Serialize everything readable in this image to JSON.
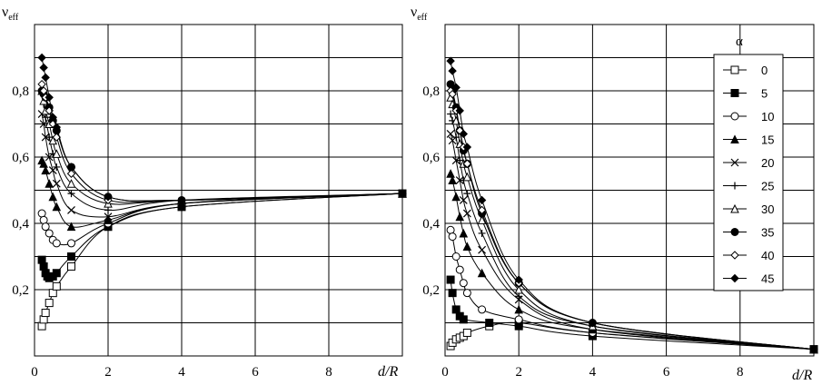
{
  "chart_data": [
    {
      "type": "line",
      "ylabel": "ν",
      "ylabel_sub": "eff",
      "xlabel": "d/R",
      "xlim": [
        0,
        10
      ],
      "ylim": [
        0,
        1
      ],
      "x_ticks": [
        "0",
        "2",
        "4",
        "6",
        "8"
      ],
      "y_ticks": [
        "0,2",
        "0,4",
        "0,6",
        "0,8"
      ],
      "grid": true,
      "series": [
        {
          "name": "0",
          "marker": "square-open",
          "points": [
            [
              0.2,
              0.09
            ],
            [
              0.25,
              0.11
            ],
            [
              0.3,
              0.13
            ],
            [
              0.4,
              0.16
            ],
            [
              0.5,
              0.19
            ],
            [
              0.6,
              0.21
            ],
            [
              1.0,
              0.27
            ],
            [
              2.0,
              0.39
            ],
            [
              4.0,
              0.45
            ],
            [
              10.0,
              0.49
            ]
          ]
        },
        {
          "name": "5",
          "marker": "square-filled",
          "points": [
            [
              0.2,
              0.29
            ],
            [
              0.25,
              0.27
            ],
            [
              0.3,
              0.25
            ],
            [
              0.35,
              0.24
            ],
            [
              0.4,
              0.235
            ],
            [
              0.5,
              0.24
            ],
            [
              0.6,
              0.25
            ],
            [
              1.0,
              0.3
            ],
            [
              2.0,
              0.39
            ],
            [
              4.0,
              0.45
            ],
            [
              10.0,
              0.49
            ]
          ]
        },
        {
          "name": "10",
          "marker": "circle-open",
          "points": [
            [
              0.2,
              0.43
            ],
            [
              0.25,
              0.41
            ],
            [
              0.3,
              0.39
            ],
            [
              0.4,
              0.37
            ],
            [
              0.5,
              0.35
            ],
            [
              0.6,
              0.34
            ],
            [
              1.0,
              0.34
            ],
            [
              2.0,
              0.4
            ],
            [
              4.0,
              0.46
            ],
            [
              10.0,
              0.49
            ]
          ]
        },
        {
          "name": "15",
          "marker": "triangle-filled",
          "points": [
            [
              0.2,
              0.59
            ],
            [
              0.25,
              0.58
            ],
            [
              0.3,
              0.56
            ],
            [
              0.4,
              0.52
            ],
            [
              0.5,
              0.48
            ],
            [
              0.6,
              0.45
            ],
            [
              1.0,
              0.39
            ],
            [
              2.0,
              0.41
            ],
            [
              4.0,
              0.46
            ],
            [
              10.0,
              0.49
            ]
          ]
        },
        {
          "name": "20",
          "marker": "x",
          "points": [
            [
              0.2,
              0.73
            ],
            [
              0.25,
              0.7
            ],
            [
              0.3,
              0.66
            ],
            [
              0.4,
              0.6
            ],
            [
              0.5,
              0.56
            ],
            [
              0.6,
              0.52
            ],
            [
              1.0,
              0.44
            ],
            [
              2.0,
              0.42
            ],
            [
              4.0,
              0.46
            ],
            [
              10.0,
              0.49
            ]
          ]
        },
        {
          "name": "25",
          "marker": "plus",
          "points": [
            [
              0.2,
              0.79
            ],
            [
              0.25,
              0.76
            ],
            [
              0.3,
              0.72
            ],
            [
              0.4,
              0.66
            ],
            [
              0.5,
              0.61
            ],
            [
              0.6,
              0.57
            ],
            [
              1.0,
              0.49
            ],
            [
              2.0,
              0.44
            ],
            [
              4.0,
              0.47
            ],
            [
              10.0,
              0.49
            ]
          ]
        },
        {
          "name": "30",
          "marker": "triangle-open",
          "points": [
            [
              0.2,
              0.8
            ],
            [
              0.25,
              0.77
            ],
            [
              0.3,
              0.74
            ],
            [
              0.4,
              0.7
            ],
            [
              0.5,
              0.65
            ],
            [
              0.6,
              0.61
            ],
            [
              1.0,
              0.52
            ],
            [
              2.0,
              0.46
            ],
            [
              4.0,
              0.47
            ],
            [
              10.0,
              0.49
            ]
          ]
        },
        {
          "name": "35",
          "marker": "circle-filled",
          "points": [
            [
              0.2,
              0.8
            ],
            [
              0.25,
              0.79
            ],
            [
              0.3,
              0.78
            ],
            [
              0.4,
              0.75
            ],
            [
              0.5,
              0.71
            ],
            [
              0.6,
              0.68
            ],
            [
              1.0,
              0.57
            ],
            [
              2.0,
              0.48
            ],
            [
              4.0,
              0.47
            ],
            [
              10.0,
              0.49
            ]
          ]
        },
        {
          "name": "40",
          "marker": "diamond-open",
          "points": [
            [
              0.2,
              0.82
            ],
            [
              0.25,
              0.8
            ],
            [
              0.3,
              0.78
            ],
            [
              0.4,
              0.74
            ],
            [
              0.5,
              0.7
            ],
            [
              0.6,
              0.66
            ],
            [
              1.0,
              0.55
            ],
            [
              2.0,
              0.47
            ],
            [
              4.0,
              0.47
            ],
            [
              10.0,
              0.49
            ]
          ]
        },
        {
          "name": "45",
          "marker": "diamond-filled",
          "points": [
            [
              0.2,
              0.9
            ],
            [
              0.25,
              0.87
            ],
            [
              0.3,
              0.84
            ],
            [
              0.4,
              0.78
            ],
            [
              0.5,
              0.72
            ],
            [
              0.6,
              0.69
            ],
            [
              1.0,
              0.57
            ],
            [
              2.0,
              0.48
            ],
            [
              4.0,
              0.47
            ],
            [
              10.0,
              0.49
            ]
          ]
        }
      ]
    },
    {
      "type": "line",
      "ylabel": "ν",
      "ylabel_sub": "eff",
      "xlabel": "d/R",
      "xlim": [
        0,
        10
      ],
      "ylim": [
        0,
        1
      ],
      "x_ticks": [
        "0",
        "2",
        "4",
        "6",
        "8"
      ],
      "y_ticks": [
        "0,2",
        "0,4",
        "0,6",
        "0,8"
      ],
      "grid": true,
      "legend": {
        "title": "α",
        "position": "top-right"
      },
      "series": [
        {
          "name": "0",
          "marker": "square-open",
          "points": [
            [
              0.15,
              0.03
            ],
            [
              0.2,
              0.04
            ],
            [
              0.3,
              0.05
            ],
            [
              0.4,
              0.055
            ],
            [
              0.5,
              0.06
            ],
            [
              0.6,
              0.07
            ],
            [
              1.2,
              0.09
            ],
            [
              2.0,
              0.1
            ],
            [
              4.0,
              0.07
            ],
            [
              10.0,
              0.02
            ]
          ]
        },
        {
          "name": "5",
          "marker": "square-filled",
          "points": [
            [
              0.15,
              0.23
            ],
            [
              0.2,
              0.19
            ],
            [
              0.3,
              0.14
            ],
            [
              0.4,
              0.12
            ],
            [
              0.5,
              0.11
            ],
            [
              1.2,
              0.1
            ],
            [
              2.0,
              0.09
            ],
            [
              4.0,
              0.06
            ],
            [
              10.0,
              0.02
            ]
          ]
        },
        {
          "name": "10",
          "marker": "circle-open",
          "points": [
            [
              0.15,
              0.38
            ],
            [
              0.2,
              0.36
            ],
            [
              0.3,
              0.3
            ],
            [
              0.4,
              0.26
            ],
            [
              0.5,
              0.22
            ],
            [
              0.6,
              0.19
            ],
            [
              1.0,
              0.14
            ],
            [
              2.0,
              0.11
            ],
            [
              4.0,
              0.07
            ],
            [
              10.0,
              0.02
            ]
          ]
        },
        {
          "name": "15",
          "marker": "triangle-filled",
          "points": [
            [
              0.15,
              0.55
            ],
            [
              0.2,
              0.53
            ],
            [
              0.3,
              0.48
            ],
            [
              0.4,
              0.42
            ],
            [
              0.5,
              0.37
            ],
            [
              0.6,
              0.33
            ],
            [
              1.0,
              0.25
            ],
            [
              2.0,
              0.14
            ],
            [
              4.0,
              0.08
            ],
            [
              10.0,
              0.02
            ]
          ]
        },
        {
          "name": "20",
          "marker": "x",
          "points": [
            [
              0.15,
              0.67
            ],
            [
              0.2,
              0.65
            ],
            [
              0.3,
              0.59
            ],
            [
              0.4,
              0.53
            ],
            [
              0.5,
              0.47
            ],
            [
              0.6,
              0.43
            ],
            [
              1.0,
              0.32
            ],
            [
              2.0,
              0.17
            ],
            [
              4.0,
              0.08
            ],
            [
              10.0,
              0.02
            ]
          ]
        },
        {
          "name": "25",
          "marker": "plus",
          "points": [
            [
              0.15,
              0.73
            ],
            [
              0.2,
              0.71
            ],
            [
              0.3,
              0.66
            ],
            [
              0.4,
              0.59
            ],
            [
              0.5,
              0.53
            ],
            [
              0.6,
              0.49
            ],
            [
              1.0,
              0.37
            ],
            [
              2.0,
              0.18
            ],
            [
              4.0,
              0.09
            ],
            [
              10.0,
              0.02
            ]
          ]
        },
        {
          "name": "30",
          "marker": "triangle-open",
          "points": [
            [
              0.15,
              0.78
            ],
            [
              0.2,
              0.76
            ],
            [
              0.3,
              0.71
            ],
            [
              0.4,
              0.64
            ],
            [
              0.5,
              0.58
            ],
            [
              0.6,
              0.54
            ],
            [
              1.0,
              0.41
            ],
            [
              2.0,
              0.2
            ],
            [
              4.0,
              0.09
            ],
            [
              10.0,
              0.02
            ]
          ]
        },
        {
          "name": "35",
          "marker": "circle-filled",
          "points": [
            [
              0.15,
              0.82
            ],
            [
              0.2,
              0.8
            ],
            [
              0.3,
              0.75
            ],
            [
              0.4,
              0.68
            ],
            [
              0.5,
              0.62
            ],
            [
              0.6,
              0.58
            ],
            [
              1.0,
              0.43
            ],
            [
              2.0,
              0.22
            ],
            [
              4.0,
              0.1
            ],
            [
              10.0,
              0.02
            ]
          ]
        },
        {
          "name": "40",
          "marker": "diamond-open",
          "points": [
            [
              0.15,
              0.8
            ],
            [
              0.2,
              0.79
            ],
            [
              0.3,
              0.74
            ],
            [
              0.4,
              0.68
            ],
            [
              0.5,
              0.63
            ],
            [
              0.6,
              0.58
            ],
            [
              1.0,
              0.44
            ],
            [
              2.0,
              0.22
            ],
            [
              4.0,
              0.1
            ],
            [
              10.0,
              0.02
            ]
          ]
        },
        {
          "name": "45",
          "marker": "diamond-filled",
          "points": [
            [
              0.15,
              0.89
            ],
            [
              0.2,
              0.86
            ],
            [
              0.3,
              0.81
            ],
            [
              0.4,
              0.74
            ],
            [
              0.5,
              0.67
            ],
            [
              0.6,
              0.63
            ],
            [
              1.0,
              0.47
            ],
            [
              2.0,
              0.23
            ],
            [
              4.0,
              0.1
            ],
            [
              10.0,
              0.02
            ]
          ]
        }
      ]
    }
  ]
}
